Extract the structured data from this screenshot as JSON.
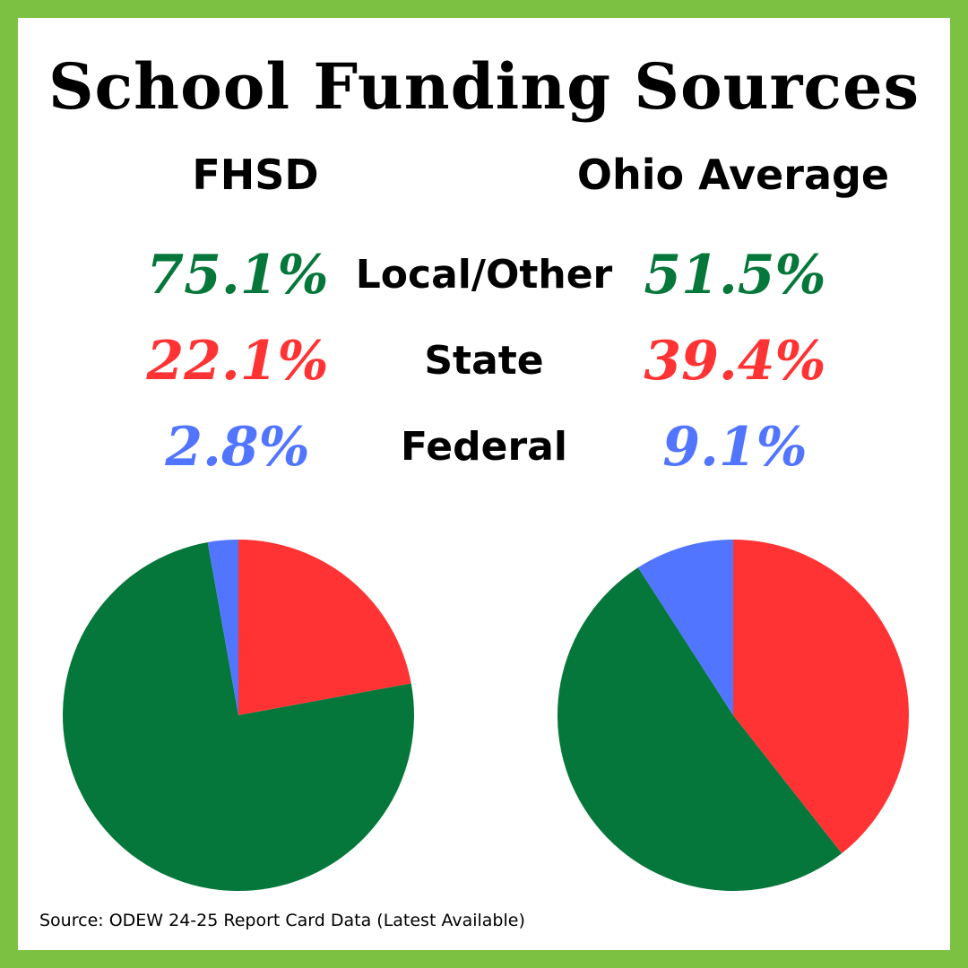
{
  "title": "School Funding Sources",
  "source": "Source: ODEW 24-25 Report Card Data (Latest Available)",
  "colors": {
    "frame": "#7cc142",
    "local": "#05773a",
    "state": "#ff3334",
    "federal": "#5275ff"
  },
  "chart_data": [
    {
      "type": "pie",
      "title": "FHSD",
      "categories": [
        "Local/Other",
        "State",
        "Federal"
      ],
      "values": [
        75.1,
        22.1,
        2.8
      ],
      "labels": [
        "75.1%",
        "22.1%",
        "2.8%"
      ],
      "colors": [
        "#05773a",
        "#ff3334",
        "#5275ff"
      ]
    },
    {
      "type": "pie",
      "title": "Ohio Average",
      "categories": [
        "Local/Other",
        "State",
        "Federal"
      ],
      "values": [
        51.5,
        39.4,
        9.1
      ],
      "labels": [
        "51.5%",
        "39.4%",
        "9.1%"
      ],
      "colors": [
        "#05773a",
        "#ff3334",
        "#5275ff"
      ]
    }
  ]
}
